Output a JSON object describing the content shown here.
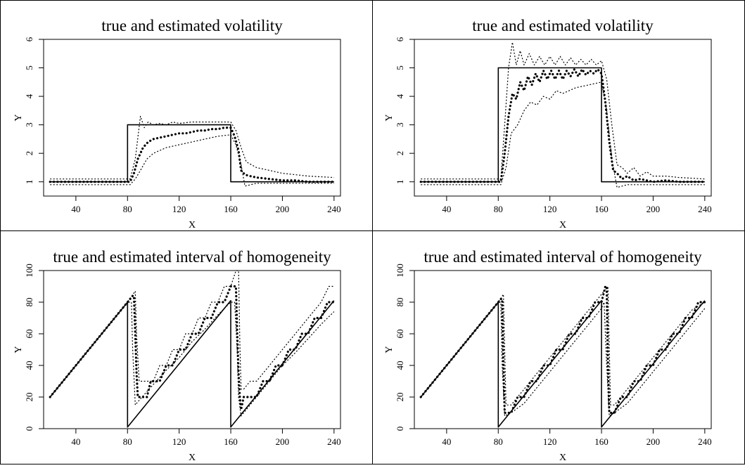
{
  "chart_data": [
    {
      "type": "line",
      "title": "true and estimated volatility",
      "xlabel": "X",
      "ylabel": "Y",
      "xlim": [
        15,
        245
      ],
      "ylim": [
        0.5,
        6
      ],
      "xticks": [
        "40",
        "80",
        "120",
        "160",
        "200",
        "240"
      ],
      "yticks": [
        "1",
        "2",
        "3",
        "4",
        "5",
        "6"
      ],
      "series": [
        {
          "style": "solid",
          "x": [
            20,
            80,
            80,
            160,
            160,
            240
          ],
          "y": [
            1,
            1,
            3,
            3,
            1,
            1
          ]
        },
        {
          "style": "bold-dotted",
          "x": [
            20,
            82,
            85,
            88,
            92,
            96,
            100,
            105,
            110,
            115,
            120,
            125,
            130,
            135,
            140,
            145,
            150,
            155,
            160,
            163,
            166,
            168,
            171,
            175,
            180,
            190,
            200,
            210,
            220,
            240
          ],
          "y": [
            1,
            1,
            1.3,
            1.8,
            2.2,
            2.4,
            2.5,
            2.55,
            2.6,
            2.65,
            2.7,
            2.7,
            2.75,
            2.8,
            2.8,
            2.85,
            2.85,
            2.9,
            2.9,
            2.6,
            2.1,
            1.4,
            1.25,
            1.2,
            1.15,
            1.1,
            1.05,
            1.05,
            1,
            1
          ]
        },
        {
          "style": "dotted",
          "x": [
            20,
            82,
            86,
            90,
            93,
            96,
            100,
            105,
            110,
            115,
            120,
            130,
            140,
            150,
            160,
            164,
            168,
            172,
            180,
            190,
            200,
            220,
            240
          ],
          "y": [
            1.1,
            1.1,
            1.8,
            3.3,
            2.9,
            3.1,
            3.0,
            3.05,
            3.0,
            3.1,
            3.05,
            3.1,
            3.1,
            3.1,
            3.1,
            2.8,
            2.2,
            1.7,
            1.5,
            1.4,
            1.3,
            1.2,
            1.15
          ]
        },
        {
          "style": "dotted",
          "x": [
            20,
            82,
            86,
            90,
            95,
            100,
            110,
            120,
            130,
            140,
            150,
            160,
            164,
            168,
            171,
            180,
            200,
            240
          ],
          "y": [
            0.9,
            0.9,
            1.1,
            1.4,
            1.8,
            2.0,
            2.2,
            2.3,
            2.4,
            2.5,
            2.6,
            2.65,
            2.3,
            1.6,
            0.85,
            0.95,
            0.95,
            0.95
          ]
        }
      ]
    },
    {
      "type": "line",
      "title": "true and estimated volatility",
      "xlabel": "X",
      "ylabel": "Y",
      "xlim": [
        15,
        245
      ],
      "ylim": [
        0.5,
        6
      ],
      "xticks": [
        "40",
        "80",
        "120",
        "160",
        "200",
        "240"
      ],
      "yticks": [
        "1",
        "2",
        "3",
        "4",
        "5",
        "6"
      ],
      "series": [
        {
          "style": "solid",
          "x": [
            20,
            80,
            80,
            160,
            160,
            240
          ],
          "y": [
            1,
            1,
            5,
            5,
            1,
            1
          ]
        },
        {
          "style": "bold-dotted",
          "x": [
            20,
            82,
            85,
            88,
            91,
            94,
            97,
            100,
            103,
            106,
            109,
            112,
            115,
            118,
            121,
            124,
            127,
            130,
            133,
            136,
            139,
            142,
            145,
            148,
            151,
            154,
            157,
            160,
            163,
            166,
            169,
            172,
            176,
            180,
            185,
            190,
            200,
            210,
            220,
            240
          ],
          "y": [
            1,
            1,
            2.0,
            3.3,
            4.1,
            3.9,
            4.5,
            4.2,
            4.7,
            4.4,
            4.8,
            4.5,
            4.9,
            4.6,
            4.9,
            4.6,
            4.9,
            4.6,
            4.9,
            4.7,
            4.95,
            4.7,
            4.95,
            4.75,
            4.9,
            4.8,
            4.95,
            4.8,
            3.8,
            2.4,
            1.4,
            1.3,
            1.1,
            1.2,
            1.05,
            1.1,
            1.0,
            1.05,
            1.0,
            1.0
          ]
        },
        {
          "style": "dotted",
          "x": [
            20,
            82,
            85,
            88,
            91,
            94,
            97,
            100,
            104,
            108,
            112,
            116,
            120,
            124,
            128,
            132,
            136,
            140,
            144,
            148,
            152,
            156,
            160,
            164,
            168,
            172,
            176,
            180,
            185,
            190,
            195,
            200,
            210,
            220,
            240
          ],
          "y": [
            1.1,
            1.1,
            3.0,
            5.0,
            5.9,
            5.1,
            5.6,
            5.1,
            5.5,
            5.1,
            5.4,
            5.1,
            5.4,
            5.1,
            5.4,
            5.1,
            5.35,
            5.1,
            5.3,
            5.1,
            5.3,
            5.1,
            5.25,
            4.6,
            3.0,
            1.6,
            1.5,
            1.3,
            1.5,
            1.2,
            1.35,
            1.2,
            1.2,
            1.15,
            1.1
          ]
        },
        {
          "style": "dotted",
          "x": [
            20,
            82,
            86,
            90,
            95,
            100,
            105,
            110,
            115,
            120,
            125,
            130,
            140,
            150,
            160,
            164,
            168,
            172,
            180,
            190,
            200,
            240
          ],
          "y": [
            0.9,
            0.9,
            1.5,
            2.7,
            3.0,
            3.5,
            3.8,
            3.7,
            4.0,
            3.9,
            4.2,
            4.1,
            4.3,
            4.4,
            4.5,
            3.5,
            1.8,
            0.8,
            0.9,
            0.9,
            0.9,
            0.9
          ]
        }
      ]
    },
    {
      "type": "line",
      "title": "true and estimated interval of homogeneity",
      "xlabel": "X",
      "ylabel": "Y",
      "xlim": [
        15,
        245
      ],
      "ylim": [
        0,
        100
      ],
      "xticks": [
        "40",
        "80",
        "120",
        "160",
        "200",
        "240"
      ],
      "yticks": [
        "0",
        "20",
        "40",
        "60",
        "80",
        "100"
      ],
      "series": [
        {
          "style": "solid",
          "x": [
            20,
            80,
            80,
            160,
            160,
            240
          ],
          "y": [
            20,
            80,
            1,
            81,
            1,
            81
          ]
        },
        {
          "style": "bold-dotted",
          "x": [
            20,
            80,
            82,
            84,
            85,
            86,
            87,
            88,
            90,
            95,
            98,
            100,
            105,
            110,
            115,
            120,
            125,
            130,
            135,
            140,
            145,
            150,
            155,
            160,
            162,
            164,
            165,
            166,
            167,
            168,
            170,
            175,
            180,
            185,
            190,
            195,
            200,
            205,
            210,
            215,
            220,
            225,
            230,
            235,
            240
          ],
          "y": [
            20,
            80,
            82,
            84,
            84,
            60,
            35,
            20,
            20,
            20,
            30,
            30,
            30,
            40,
            40,
            50,
            50,
            60,
            60,
            70,
            70,
            80,
            80,
            90,
            90,
            90,
            60,
            35,
            20,
            12,
            20,
            20,
            20,
            30,
            30,
            40,
            40,
            50,
            50,
            60,
            60,
            70,
            70,
            80,
            80
          ]
        },
        {
          "style": "dotted",
          "x": [
            20,
            80,
            86,
            87,
            89,
            90,
            95,
            100,
            105,
            110,
            115,
            120,
            125,
            130,
            135,
            140,
            145,
            150,
            155,
            160,
            164,
            166,
            167,
            168,
            170,
            175,
            180,
            190,
            200,
            210,
            220,
            230,
            236,
            238,
            240
          ],
          "y": [
            20,
            80,
            87,
            60,
            30,
            30,
            30,
            30,
            40,
            40,
            50,
            50,
            60,
            60,
            70,
            70,
            80,
            80,
            90,
            90,
            100,
            100,
            55,
            25,
            25,
            30,
            30,
            40,
            50,
            60,
            70,
            80,
            90,
            90,
            90
          ]
        },
        {
          "style": "dotted",
          "x": [
            20,
            80,
            83,
            84,
            86,
            88,
            100,
            110,
            120,
            130,
            140,
            150,
            160,
            163,
            165,
            166,
            168,
            180,
            190,
            200,
            210,
            220,
            230,
            240
          ],
          "y": [
            20,
            80,
            80,
            50,
            15,
            17,
            28,
            37,
            45,
            55,
            63,
            72,
            80,
            80,
            50,
            20,
            8,
            20,
            30,
            40,
            48,
            57,
            66,
            74
          ]
        }
      ]
    },
    {
      "type": "line",
      "title": "true and estimated interval of homogeneity",
      "xlabel": "X",
      "ylabel": "Y",
      "xlim": [
        15,
        245
      ],
      "ylim": [
        0,
        100
      ],
      "xticks": [
        "40",
        "80",
        "120",
        "160",
        "200",
        "240"
      ],
      "yticks": [
        "0",
        "20",
        "40",
        "60",
        "80",
        "100"
      ],
      "series": [
        {
          "style": "solid",
          "x": [
            20,
            80,
            80,
            160,
            160,
            240
          ],
          "y": [
            20,
            80,
            1,
            81,
            1,
            81
          ]
        },
        {
          "style": "bold-dotted",
          "x": [
            20,
            80,
            82,
            83,
            84,
            85,
            90,
            95,
            100,
            105,
            110,
            115,
            120,
            125,
            130,
            135,
            140,
            145,
            150,
            155,
            160,
            163,
            164,
            165,
            166,
            170,
            175,
            180,
            185,
            190,
            195,
            200,
            205,
            210,
            215,
            220,
            225,
            230,
            235,
            240
          ],
          "y": [
            20,
            80,
            82,
            82,
            40,
            10,
            10,
            20,
            20,
            30,
            30,
            40,
            40,
            50,
            50,
            60,
            60,
            70,
            70,
            80,
            80,
            90,
            90,
            40,
            10,
            10,
            20,
            20,
            30,
            30,
            40,
            40,
            50,
            50,
            60,
            60,
            70,
            70,
            80,
            80
          ]
        },
        {
          "style": "dotted",
          "x": [
            20,
            80,
            84,
            85,
            86,
            90,
            95,
            100,
            110,
            120,
            130,
            140,
            150,
            160,
            165,
            166,
            167,
            170,
            180,
            190,
            200,
            210,
            220,
            230,
            240
          ],
          "y": [
            20,
            80,
            85,
            50,
            15,
            15,
            20,
            25,
            35,
            45,
            55,
            65,
            75,
            85,
            90,
            50,
            15,
            15,
            25,
            35,
            45,
            55,
            65,
            75,
            80
          ]
        },
        {
          "style": "dotted",
          "x": [
            20,
            80,
            82,
            83,
            85,
            90,
            100,
            110,
            120,
            130,
            140,
            150,
            160,
            162,
            164,
            166,
            170,
            180,
            190,
            200,
            210,
            220,
            230,
            240
          ],
          "y": [
            20,
            80,
            80,
            40,
            8,
            10,
            16,
            26,
            36,
            46,
            56,
            66,
            76,
            80,
            40,
            8,
            10,
            16,
            26,
            36,
            46,
            56,
            66,
            76
          ]
        }
      ]
    }
  ]
}
